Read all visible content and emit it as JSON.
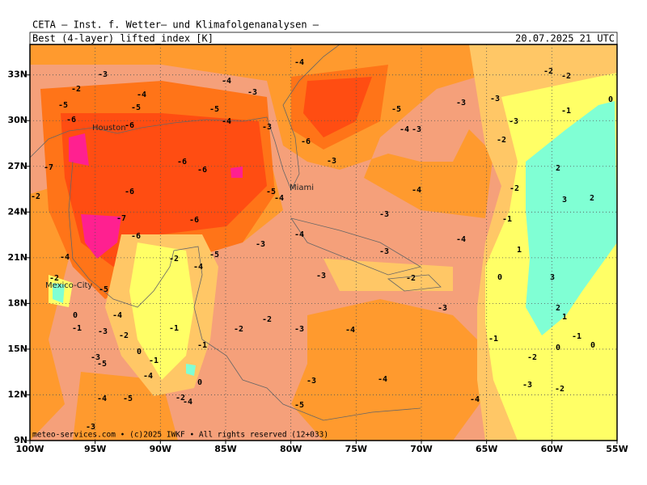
{
  "header": {
    "title": "CETA — Inst. f. Wetter— und Klimafolgenanalysen —",
    "field": "Best (4-layer) lifted_index [K]",
    "valid_time": "20.07.2025 21 UTC"
  },
  "map": {
    "xlim": [
      -100,
      -55
    ],
    "ylim": [
      9,
      35
    ],
    "xticks": [
      {
        "value": -100,
        "label": "100W"
      },
      {
        "value": -95,
        "label": "95W"
      },
      {
        "value": -90,
        "label": "90W"
      },
      {
        "value": -85,
        "label": "85W"
      },
      {
        "value": -80,
        "label": "80W"
      },
      {
        "value": -75,
        "label": "75W"
      },
      {
        "value": -70,
        "label": "70W"
      },
      {
        "value": -65,
        "label": "65W"
      },
      {
        "value": -60,
        "label": "60W"
      },
      {
        "value": -55,
        "label": "55W"
      }
    ],
    "yticks": [
      {
        "value": 9,
        "label": "9N"
      },
      {
        "value": 12,
        "label": "12N"
      },
      {
        "value": 15,
        "label": "15N"
      },
      {
        "value": 18,
        "label": "18N"
      },
      {
        "value": 21,
        "label": "21N"
      },
      {
        "value": 24,
        "label": "24N"
      },
      {
        "value": 27,
        "label": "27N"
      },
      {
        "value": 30,
        "label": "30N"
      },
      {
        "value": 33,
        "label": "33N"
      }
    ],
    "cities": [
      "Houston",
      "Miami",
      "Mexico-City"
    ],
    "contour_labels": [
      -3,
      -4,
      -2,
      -5,
      -4,
      -5,
      -6,
      -6,
      -5,
      -4,
      -3,
      -4,
      -3,
      -5,
      -4,
      -3,
      -3,
      -3,
      -2,
      -2,
      -1,
      0,
      -3,
      -2,
      -6,
      -3,
      -7,
      -6,
      -6,
      -6,
      -5,
      -4,
      -4,
      -2,
      2,
      3,
      2,
      -2,
      -7,
      -6,
      -3,
      -1,
      -6,
      -4,
      -4,
      -3,
      -3,
      1,
      -5,
      -2,
      -4,
      -4,
      -2,
      -3,
      -2,
      0,
      3,
      -5,
      -3,
      2,
      1,
      -4,
      0,
      -1,
      -3,
      -2,
      -1,
      -2,
      -2,
      -3,
      -4,
      -1,
      -1,
      0,
      0,
      -2,
      -1,
      0,
      -1,
      -3,
      -5,
      -4,
      -3,
      -4,
      -3,
      -2,
      0,
      -4,
      -5,
      -2,
      -4,
      -5,
      -4,
      -3
    ],
    "footer": "meteo-services.com • (c)2025 IWKF • All rights reserved (12+033)"
  }
}
